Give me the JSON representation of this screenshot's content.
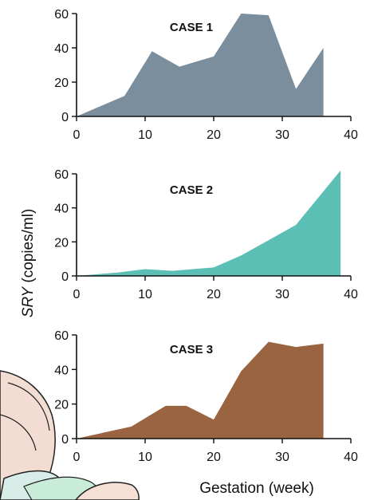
{
  "chart_data": {
    "type": "area",
    "ylabel_italic": "SRY",
    "ylabel_rest": " (copies/ml)",
    "xlabel": "Gestation (week)",
    "xlim": [
      0,
      40
    ],
    "ylim": [
      0,
      60
    ],
    "xticks": [
      0,
      10,
      20,
      30,
      40
    ],
    "yticks": [
      0,
      20,
      40,
      60
    ],
    "grid": false,
    "panels": [
      {
        "label": "CASE 1",
        "color": "#7a8e9e",
        "x": [
          0,
          7,
          11,
          15,
          20,
          24,
          28,
          32,
          36
        ],
        "y": [
          0,
          12,
          38,
          29,
          35,
          60,
          59,
          16,
          40
        ]
      },
      {
        "label": "CASE 2",
        "color": "#5bbfb6",
        "x": [
          0,
          6,
          10,
          14,
          20,
          24,
          28,
          32,
          38.5
        ],
        "y": [
          0,
          2,
          4,
          3,
          5,
          12,
          21,
          30,
          62
        ]
      },
      {
        "label": "CASE 3",
        "color": "#9a6440",
        "x": [
          0,
          8,
          13,
          16,
          20,
          24,
          28,
          32,
          36
        ],
        "y": [
          0,
          7,
          19,
          19,
          11,
          39,
          56,
          53,
          55
        ]
      }
    ]
  }
}
